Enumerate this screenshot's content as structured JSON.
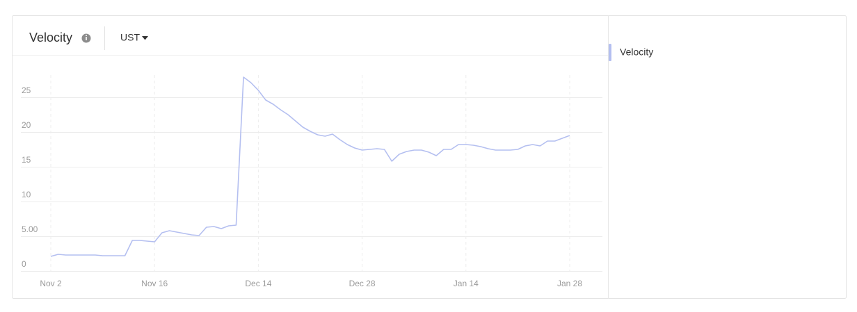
{
  "selector": {
    "label": "UST"
  },
  "chart_data": {
    "type": "line",
    "title": "Velocity",
    "categories": [
      "Nov 2",
      null,
      null,
      null,
      null,
      null,
      null,
      null,
      null,
      null,
      null,
      null,
      null,
      null,
      "Nov 16",
      null,
      null,
      null,
      null,
      null,
      null,
      null,
      null,
      null,
      null,
      null,
      null,
      null,
      "Dec 14",
      null,
      null,
      null,
      null,
      null,
      null,
      null,
      null,
      null,
      null,
      null,
      null,
      null,
      "Dec 28",
      null,
      null,
      null,
      null,
      null,
      null,
      null,
      null,
      null,
      null,
      null,
      null,
      null,
      "Jan 14",
      null,
      null,
      null,
      null,
      null,
      null,
      null,
      null,
      null,
      null,
      null,
      null,
      null,
      "Jan 28"
    ],
    "series": [
      {
        "name": "Velocity",
        "color": "#b4bff0",
        "values": [
          2.1,
          2.4,
          2.3,
          2.3,
          2.3,
          2.3,
          2.3,
          2.2,
          2.2,
          2.2,
          2.2,
          4.4,
          4.4,
          4.3,
          4.2,
          5.5,
          5.8,
          5.6,
          5.4,
          5.2,
          5.1,
          6.3,
          6.4,
          6.1,
          6.5,
          6.6,
          27.9,
          27.1,
          26.0,
          24.6,
          24.0,
          23.2,
          22.5,
          21.6,
          20.7,
          20.1,
          19.6,
          19.4,
          19.7,
          18.9,
          18.2,
          17.7,
          17.4,
          17.5,
          17.6,
          17.5,
          15.8,
          16.8,
          17.2,
          17.4,
          17.4,
          17.1,
          16.6,
          17.5,
          17.5,
          18.2,
          18.2,
          18.1,
          17.9,
          17.6,
          17.4,
          17.4,
          17.4,
          17.5,
          18.0,
          18.2,
          18.0,
          18.7,
          18.7,
          19.1,
          19.5
        ]
      }
    ],
    "ylim": [
      0,
      29
    ],
    "yticks": [
      0,
      {
        "value": 5,
        "label": "5.00"
      },
      10,
      15,
      20,
      25
    ],
    "grid": true,
    "legend": "right"
  }
}
